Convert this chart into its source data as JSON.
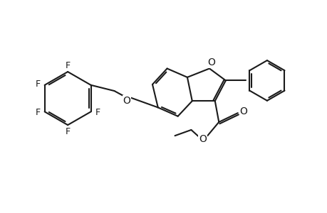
{
  "background_color": "#ffffff",
  "line_color": "#1a1a1a",
  "line_width": 1.5,
  "font_size": 9,
  "fig_width": 4.6,
  "fig_height": 3.0,
  "dpi": 100,
  "xlim": [
    0,
    10
  ],
  "ylim": [
    0,
    6.5
  ]
}
